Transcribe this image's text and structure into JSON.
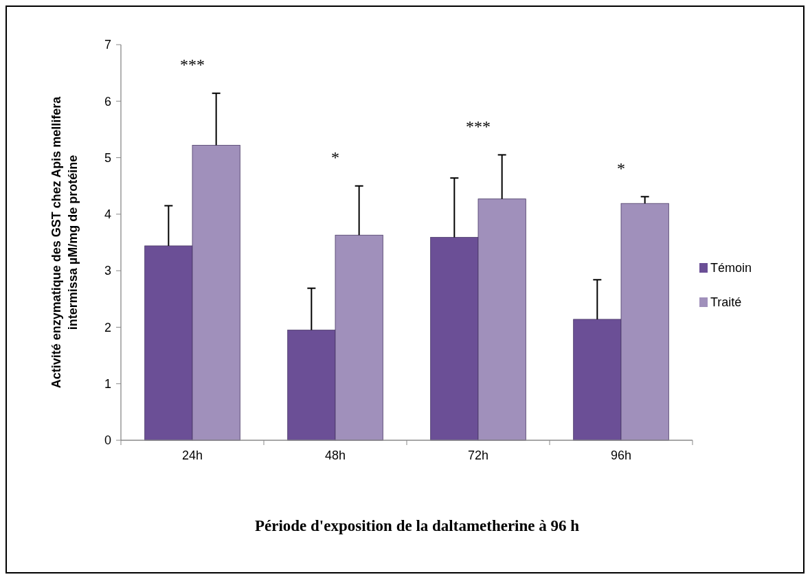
{
  "chart_data": {
    "type": "bar",
    "xlabel": "Période d'exposition de la daltametherine à 96 h",
    "ylabel": "Activité enzymatique des GST chez  Apis mellifera\nintermissa µM/mg de protéine",
    "categories": [
      "24h",
      "48h",
      "72h",
      "96h"
    ],
    "series": [
      {
        "name": "Témoin",
        "color": "#6b4f96",
        "values": [
          3.44,
          1.95,
          3.59,
          2.14
        ],
        "errors": [
          0.71,
          0.74,
          1.05,
          0.7
        ]
      },
      {
        "name": "Traité",
        "color": "#a090bb",
        "values": [
          5.22,
          3.63,
          4.27,
          4.19
        ],
        "errors": [
          0.92,
          0.87,
          0.78,
          0.12
        ]
      }
    ],
    "ylim": [
      0,
      7
    ],
    "yticks": [
      0,
      1,
      2,
      3,
      4,
      5,
      6,
      7
    ],
    "grid": false,
    "legend": "right",
    "annotations": [
      "***",
      "*",
      "***",
      "*"
    ]
  }
}
